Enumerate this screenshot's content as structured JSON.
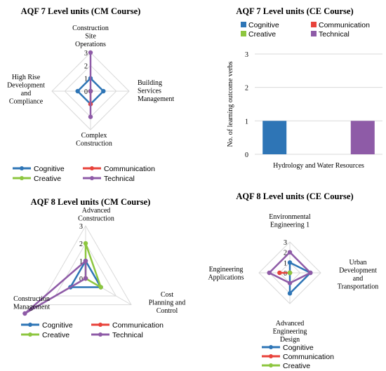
{
  "series_colors": {
    "Cognitive": "#2e75b6",
    "Communication": "#e8423a",
    "Creative": "#8dc63f",
    "Technical": "#8e5ba7"
  },
  "legend": [
    "Cognitive",
    "Communication",
    "Creative",
    "Technical"
  ],
  "chart_data": [
    {
      "id": "cm7",
      "type": "radar",
      "title": "AQF 7 Level units (CM Course)",
      "axes": [
        [
          "Construction",
          "Site",
          "Operations"
        ],
        [
          "Building",
          "Services",
          "Management"
        ],
        [
          "Complex",
          "Construction"
        ],
        [
          "High Rise",
          "Development",
          "and",
          "Compliance"
        ]
      ],
      "ticks": [
        "0",
        "1",
        "2",
        "3"
      ],
      "rmax": 3,
      "series": [
        {
          "name": "Cognitive",
          "values": [
            1,
            1,
            1,
            1
          ]
        },
        {
          "name": "Communication",
          "values": [
            0,
            0,
            1,
            0
          ]
        },
        {
          "name": "Creative",
          "values": [
            0,
            0,
            0,
            0
          ]
        },
        {
          "name": "Technical",
          "values": [
            3,
            0,
            2,
            0
          ]
        }
      ]
    },
    {
      "id": "ce7",
      "type": "bar",
      "title": "AQF 7 Level units (CE Course)",
      "categories": [
        "Hydrology and Water Resources"
      ],
      "ylabel": "No. of learning outcome verbs",
      "ylim": [
        0,
        3
      ],
      "yticks": [
        "0",
        "1",
        "2",
        "3"
      ],
      "series": [
        {
          "name": "Cognitive",
          "values": [
            1
          ]
        },
        {
          "name": "Communication",
          "values": [
            0
          ]
        },
        {
          "name": "Creative",
          "values": [
            0
          ]
        },
        {
          "name": "Technical",
          "values": [
            1
          ]
        }
      ]
    },
    {
      "id": "cm8",
      "type": "radar",
      "title": "AQF 8 Level units (CM Course)",
      "axes": [
        [
          "Advanced",
          "Construction"
        ],
        [
          "Cost",
          "Planning and",
          "Control"
        ],
        [
          "Construction",
          "Management"
        ]
      ],
      "ticks": [
        "0",
        "1",
        "2",
        "3"
      ],
      "rmax": 3,
      "series": [
        {
          "name": "Cognitive",
          "values": [
            1,
            1,
            1
          ]
        },
        {
          "name": "Communication",
          "values": [
            0,
            0,
            0
          ]
        },
        {
          "name": "Creative",
          "values": [
            2,
            1,
            0
          ]
        },
        {
          "name": "Technical",
          "values": [
            1,
            0,
            4
          ]
        }
      ]
    },
    {
      "id": "ce8",
      "type": "radar",
      "title": "AQF 8 Level units (CE Course)",
      "axes": [
        [
          "Environmental",
          "Engineering 1"
        ],
        [
          "Urban",
          "Development",
          "and",
          "Transportation"
        ],
        [
          "Advanced",
          "Engineering",
          "Design"
        ],
        [
          "Engineering",
          "Applications"
        ]
      ],
      "ticks": [
        "0",
        "1",
        "2",
        "3"
      ],
      "rmax": 3,
      "series": [
        {
          "name": "Cognitive",
          "values": [
            1,
            2,
            2,
            0
          ]
        },
        {
          "name": "Communication",
          "values": [
            0,
            0,
            0,
            1
          ]
        },
        {
          "name": "Creative",
          "values": [
            0,
            0,
            0,
            0
          ]
        },
        {
          "name": "Technical",
          "values": [
            2,
            2,
            1,
            2
          ]
        }
      ]
    }
  ]
}
